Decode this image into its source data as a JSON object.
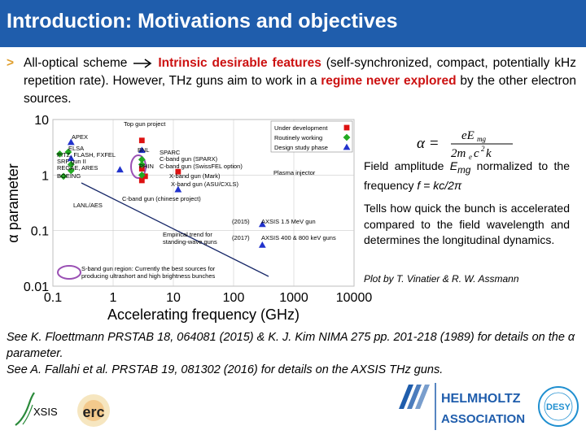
{
  "slide": {
    "title": "Introduction: Motivations and objectives",
    "bullet_marker": ">",
    "bullet_parts": [
      "All-optical scheme ",
      "Intrinsic desirable features",
      " (self-synchronized, compact, potentially kHz repetition rate). However, THz guns aim to work in a ",
      "regime never explored",
      " by the other electron sources."
    ],
    "formula": "α = eE_mg / (2m_e c² k)",
    "side_text_1_a": "Field amplitude ",
    "side_text_1_b": "E",
    "side_text_1_c": "mg",
    "side_text_1_d": " normalized to the frequency ",
    "side_text_1_e": "f = kc/2π",
    "side_text_2": "Tells how quick the bunch is accelerated compared to the field wavelength and determines the longitudinal dynamics.",
    "credit": "Plot by T. Vinatier & R. W. Assmann",
    "references": [
      "See K. Floettmann PRSTAB 18, 064081 (2015) & K. J. Kim NIMA 275 pp. 201-218 (1989)  for details on the α parameter.",
      "See A. Fallahi et al. PRSTAB 19, 081302 (2016) for details on the AXSIS THz guns."
    ]
  },
  "logos": {
    "axsis": "XSIS",
    "erc": "erc",
    "helmholtz_1": "HELMHOLTZ",
    "helmholtz_2": "ASSOCIATION",
    "desy": "DESY"
  },
  "chart_data": {
    "type": "scatter",
    "xlabel": "Accelerating frequency (GHz)",
    "ylabel": "α parameter",
    "xscale": "log",
    "yscale": "log",
    "xlim": [
      0.1,
      10000
    ],
    "ylim": [
      0.01,
      10
    ],
    "xticks": [
      "0.1",
      "1",
      "10",
      "100",
      "1000",
      "10000"
    ],
    "yticks": [
      "10",
      "1",
      "0.1",
      "0.01"
    ],
    "legend": [
      {
        "label": "Under development",
        "color": "#dd1111",
        "marker": "square"
      },
      {
        "label": "Routinely working",
        "color": "#22aa22",
        "marker": "diamond"
      },
      {
        "label": "Design study phase",
        "color": "#2233cc",
        "marker": "triangle"
      }
    ],
    "series": [
      {
        "name": "Under development",
        "color": "#dd1111",
        "marker": "square",
        "points": [
          {
            "x": 3,
            "y": 4.2
          },
          {
            "x": 3,
            "y": 1.3
          },
          {
            "x": 3,
            "y": 0.8
          },
          {
            "x": 3.4,
            "y": 0.95
          },
          {
            "x": 12,
            "y": 1.15
          }
        ]
      },
      {
        "name": "Routinely working",
        "color": "#22aa22",
        "marker": "diamond",
        "points": [
          {
            "x": 0.13,
            "y": 2.4
          },
          {
            "x": 0.18,
            "y": 2.6
          },
          {
            "x": 0.2,
            "y": 1.2
          },
          {
            "x": 0.2,
            "y": 1.55
          },
          {
            "x": 0.15,
            "y": 0.95
          },
          {
            "x": 3,
            "y": 1.9
          },
          {
            "x": 3,
            "y": 1.55
          },
          {
            "x": 3,
            "y": 1.0
          }
        ]
      },
      {
        "name": "Design study phase",
        "color": "#2233cc",
        "marker": "triangle",
        "points": [
          {
            "x": 0.2,
            "y": 3.9
          },
          {
            "x": 0.2,
            "y": 2.0
          },
          {
            "x": 1.3,
            "y": 1.25
          },
          {
            "x": 3,
            "y": 2.8
          },
          {
            "x": 12,
            "y": 0.55
          },
          {
            "x": 300,
            "y": 0.13
          },
          {
            "x": 300,
            "y": 0.055
          }
        ]
      }
    ],
    "annotations": [
      "APEX",
      "ELSA",
      "PITZ, FLASH, FXFEL",
      "SRF gun II",
      "REGAE, ARES",
      "BOEING",
      "LANL/AES",
      "Top gun project",
      "BNL",
      "SPARC",
      "C-band gun (SPARX)",
      "PHIN",
      "C-band gun (SwissFEL option)",
      "X-band gun (Mark)",
      "X-band gun (ASU/CXLS)",
      "C-band gun (chinese project)",
      "Plasma injector",
      "(2015)",
      "AXSIS 1.5 MeV gun",
      "(2017)",
      "AXSIS 400 & 800 keV guns",
      "Empirical trend for standing-wave guns",
      "S-band gun region: Currently the best sources for producing ultrashort and high brightness bunches"
    ]
  }
}
